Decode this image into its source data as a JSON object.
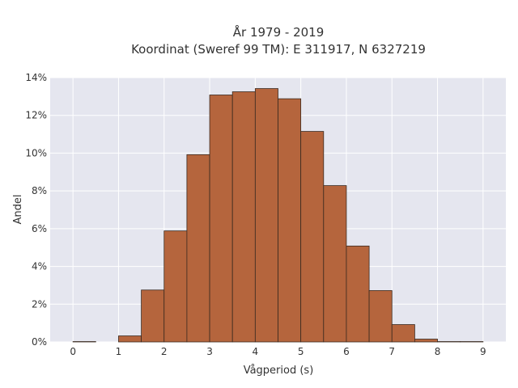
{
  "chart_data": {
    "type": "bar",
    "title": "År 1979 - 2019",
    "subtitle": "Koordinat (Sweref 99 TM): E 311917, N 6327219",
    "xlabel": "Vågperiod (s)",
    "ylabel": "Andel",
    "bin_width": 0.5,
    "bins": [
      {
        "start": 0.0,
        "value": 0.02
      },
      {
        "start": 0.5,
        "value": 0.0
      },
      {
        "start": 1.0,
        "value": 0.32
      },
      {
        "start": 1.5,
        "value": 2.75
      },
      {
        "start": 2.0,
        "value": 5.88
      },
      {
        "start": 2.5,
        "value": 9.92
      },
      {
        "start": 3.0,
        "value": 13.08
      },
      {
        "start": 3.5,
        "value": 13.25
      },
      {
        "start": 4.0,
        "value": 13.42
      },
      {
        "start": 4.5,
        "value": 12.88
      },
      {
        "start": 5.0,
        "value": 11.15
      },
      {
        "start": 5.5,
        "value": 8.28
      },
      {
        "start": 6.0,
        "value": 5.08
      },
      {
        "start": 6.5,
        "value": 2.72
      },
      {
        "start": 7.0,
        "value": 0.92
      },
      {
        "start": 7.5,
        "value": 0.15
      },
      {
        "start": 8.0,
        "value": 0.02
      },
      {
        "start": 8.5,
        "value": 0.02
      }
    ],
    "x_ticks": [
      0,
      1,
      2,
      3,
      4,
      5,
      6,
      7,
      8,
      9
    ],
    "y_ticks": [
      0,
      2,
      4,
      6,
      8,
      10,
      12,
      14
    ],
    "y_tick_suffix": "%",
    "xlim": [
      -0.5,
      9.5
    ],
    "ylim": [
      0,
      14
    ],
    "grid": true,
    "colors": {
      "bar_fill": "#b5653d",
      "bar_edge": "#3a2a20",
      "plot_bg": "#e5e6ef",
      "grid": "#ffffff"
    }
  }
}
